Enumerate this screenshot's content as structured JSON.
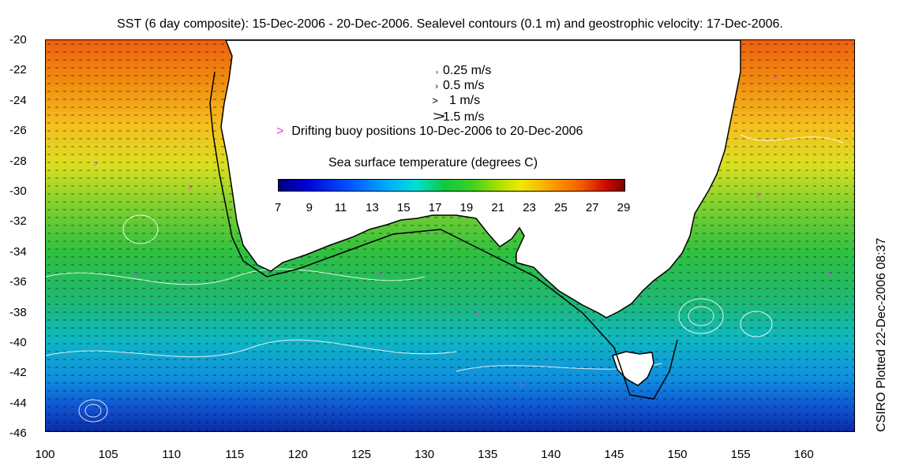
{
  "title": "SST (6 day composite): 15-Dec-2006 - 20-Dec-2006. Sealevel contours (0.1 m) and geostrophic velocity: 17-Dec-2006.",
  "side_label": "CSIRO Plotted 22-Dec-2006 08:37",
  "y_axis_ticks": [
    "-20",
    "-22",
    "-24",
    "-26",
    "-28",
    "-30",
    "-32",
    "-34",
    "-36",
    "-38",
    "-40",
    "-42",
    "-44",
    "-46"
  ],
  "x_axis_ticks": [
    "100",
    "105",
    "110",
    "115",
    "120",
    "125",
    "130",
    "135",
    "140",
    "145",
    "150",
    "155",
    "160"
  ],
  "velocity_legend": [
    {
      "label": "0.25 m/s",
      "arrow": "›"
    },
    {
      "label": "0.5 m/s",
      "arrow": "›"
    },
    {
      "label": "1 m/s",
      "arrow": ">"
    },
    {
      "label": "1.5 m/s",
      "arrow": ">"
    }
  ],
  "buoy_legend": {
    "marker": ">",
    "label": "Drifting buoy positions 10-Dec-2006 to 20-Dec-2006",
    "color": "#e040e0"
  },
  "colorbar": {
    "title": "Sea surface temperature (degrees C)",
    "labels": [
      "7",
      "9",
      "11",
      "13",
      "15",
      "17",
      "19",
      "21",
      "23",
      "25",
      "27",
      "29"
    ]
  },
  "colors": {
    "land": "#ffffff",
    "contour": "#ffffff",
    "coastline": "#000000"
  }
}
